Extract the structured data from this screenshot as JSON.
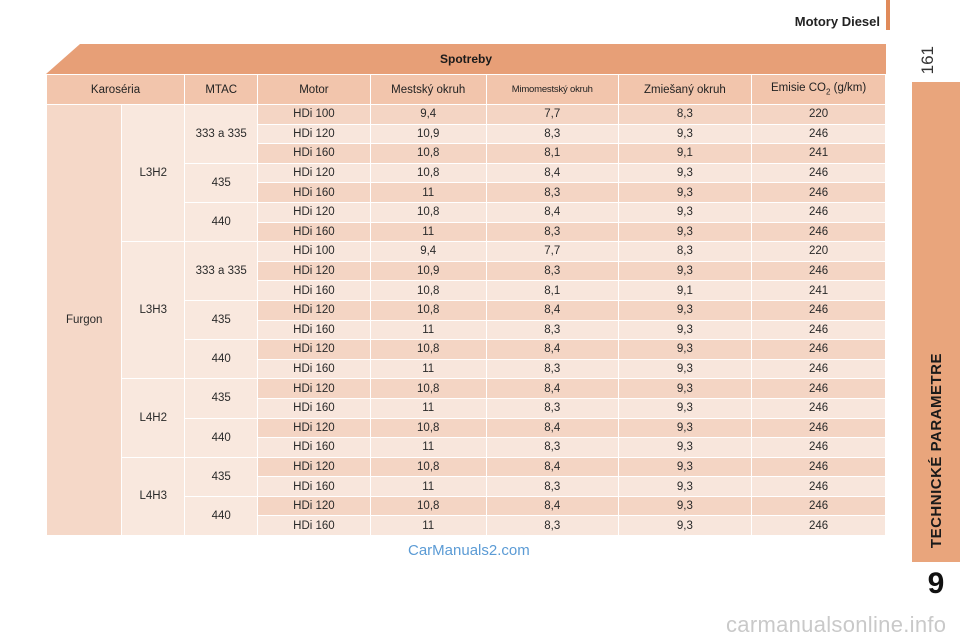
{
  "header": {
    "title": "Motory Diesel",
    "page_number": "161"
  },
  "side_tab": {
    "label": "TECHNICKÉ PARAMETRE",
    "chapter": "9"
  },
  "table": {
    "title": "Spotreby",
    "headers": {
      "karoseria": "Karoséria",
      "mtac": "MTAC",
      "motor": "Motor",
      "mestsky": "Mestský okruh",
      "mimomestsky": "Mimomestský okruh",
      "zmiesany": "Zmiešaný okruh",
      "emisie_pre": "Emisie CO",
      "emisie_sub": "2",
      "emisie_post": " (g/km)"
    },
    "karoseria": "Furgon",
    "versions": [
      {
        "name": "L3H2",
        "groups": [
          {
            "mtac": "333 a 335",
            "rows": [
              {
                "motor": "HDi 100",
                "mestsky": "9,4",
                "mimo": "7,7",
                "zmies": "8,3",
                "co2": "220"
              },
              {
                "motor": "HDi 120",
                "mestsky": "10,9",
                "mimo": "8,3",
                "zmies": "9,3",
                "co2": "246"
              },
              {
                "motor": "HDi 160",
                "mestsky": "10,8",
                "mimo": "8,1",
                "zmies": "9,1",
                "co2": "241"
              }
            ]
          },
          {
            "mtac": "435",
            "rows": [
              {
                "motor": "HDi 120",
                "mestsky": "10,8",
                "mimo": "8,4",
                "zmies": "9,3",
                "co2": "246"
              },
              {
                "motor": "HDi 160",
                "mestsky": "11",
                "mimo": "8,3",
                "zmies": "9,3",
                "co2": "246"
              }
            ]
          },
          {
            "mtac": "440",
            "rows": [
              {
                "motor": "HDi 120",
                "mestsky": "10,8",
                "mimo": "8,4",
                "zmies": "9,3",
                "co2": "246"
              },
              {
                "motor": "HDi 160",
                "mestsky": "11",
                "mimo": "8,3",
                "zmies": "9,3",
                "co2": "246"
              }
            ]
          }
        ]
      },
      {
        "name": "L3H3",
        "groups": [
          {
            "mtac": "333 a 335",
            "rows": [
              {
                "motor": "HDi 100",
                "mestsky": "9,4",
                "mimo": "7,7",
                "zmies": "8,3",
                "co2": "220"
              },
              {
                "motor": "HDi 120",
                "mestsky": "10,9",
                "mimo": "8,3",
                "zmies": "9,3",
                "co2": "246"
              },
              {
                "motor": "HDi 160",
                "mestsky": "10,8",
                "mimo": "8,1",
                "zmies": "9,1",
                "co2": "241"
              }
            ]
          },
          {
            "mtac": "435",
            "rows": [
              {
                "motor": "HDi 120",
                "mestsky": "10,8",
                "mimo": "8,4",
                "zmies": "9,3",
                "co2": "246"
              },
              {
                "motor": "HDi 160",
                "mestsky": "11",
                "mimo": "8,3",
                "zmies": "9,3",
                "co2": "246"
              }
            ]
          },
          {
            "mtac": "440",
            "rows": [
              {
                "motor": "HDi 120",
                "mestsky": "10,8",
                "mimo": "8,4",
                "zmies": "9,3",
                "co2": "246"
              },
              {
                "motor": "HDi 160",
                "mestsky": "11",
                "mimo": "8,3",
                "zmies": "9,3",
                "co2": "246"
              }
            ]
          }
        ]
      },
      {
        "name": "L4H2",
        "groups": [
          {
            "mtac": "435",
            "rows": [
              {
                "motor": "HDi 120",
                "mestsky": "10,8",
                "mimo": "8,4",
                "zmies": "9,3",
                "co2": "246"
              },
              {
                "motor": "HDi 160",
                "mestsky": "11",
                "mimo": "8,3",
                "zmies": "9,3",
                "co2": "246"
              }
            ]
          },
          {
            "mtac": "440",
            "rows": [
              {
                "motor": "HDi 120",
                "mestsky": "10,8",
                "mimo": "8,4",
                "zmies": "9,3",
                "co2": "246"
              },
              {
                "motor": "HDi 160",
                "mestsky": "11",
                "mimo": "8,3",
                "zmies": "9,3",
                "co2": "246"
              }
            ]
          }
        ]
      },
      {
        "name": "L4H3",
        "groups": [
          {
            "mtac": "435",
            "rows": [
              {
                "motor": "HDi 120",
                "mestsky": "10,8",
                "mimo": "8,4",
                "zmies": "9,3",
                "co2": "246"
              },
              {
                "motor": "HDi 160",
                "mestsky": "11",
                "mimo": "8,3",
                "zmies": "9,3",
                "co2": "246"
              }
            ]
          },
          {
            "mtac": "440",
            "rows": [
              {
                "motor": "HDi 120",
                "mestsky": "10,8",
                "mimo": "8,4",
                "zmies": "9,3",
                "co2": "246"
              },
              {
                "motor": "HDi 160",
                "mestsky": "11",
                "mimo": "8,3",
                "zmies": "9,3",
                "co2": "246"
              }
            ]
          }
        ]
      }
    ]
  },
  "watermarks": {
    "primary": "CarManuals2.com",
    "secondary": "carmanualsonline.info"
  },
  "colors": {
    "accent": "#e79f77",
    "side_tab": "#e9a57c",
    "header_cell": "#f2c5ac",
    "row_light": "#f8e6dc",
    "row_dark": "#f4d5c4"
  }
}
